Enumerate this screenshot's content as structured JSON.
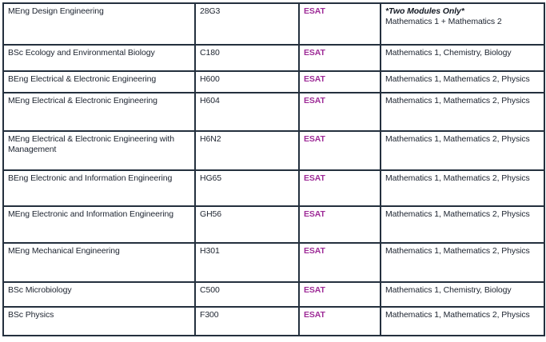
{
  "colors": {
    "esat_text": "#9e2b97",
    "table_border": "#24303e",
    "body_text": "#1d2430"
  },
  "table": {
    "rows": [
      {
        "course": "MEng Design Engineering",
        "code": "28G3",
        "test": "ESAT",
        "note": "*Two Modules Only*",
        "modules": "Mathematics 1 + Mathematics 2"
      },
      {
        "course": "BSc Ecology and Environmental Biology",
        "code": "C180",
        "test": "ESAT",
        "modules": "Mathematics 1, Chemistry, Biology"
      },
      {
        "course": "BEng Electrical & Electronic Engineering",
        "code": "H600",
        "test": "ESAT",
        "modules": "Mathematics 1, Mathematics 2, Physics"
      },
      {
        "course": "MEng Electrical & Electronic Engineering",
        "code": "H604",
        "test": "ESAT",
        "modules": "Mathematics 1, Mathematics 2, Physics"
      },
      {
        "course": "MEng Electrical & Electronic Engineering with Management",
        "code": "H6N2",
        "test": "ESAT",
        "modules": "Mathematics 1, Mathematics 2, Physics"
      },
      {
        "course": "BEng Electronic and Information Engineering",
        "code": "HG65",
        "test": "ESAT",
        "modules": "Mathematics 1, Mathematics 2, Physics"
      },
      {
        "course": "MEng Electronic and Information Engineering",
        "code": "GH56",
        "test": "ESAT",
        "modules": "Mathematics 1, Mathematics 2, Physics"
      },
      {
        "course": "MEng Mechanical Engineering",
        "code": "H301",
        "test": "ESAT",
        "modules": "Mathematics 1, Mathematics 2, Physics"
      },
      {
        "course": "BSc Microbiology",
        "code": "C500",
        "test": "ESAT",
        "modules": "Mathematics 1, Chemistry, Biology"
      },
      {
        "course": "BSc Physics",
        "code": "F300",
        "test": "ESAT",
        "modules": "Mathematics 1, Mathematics 2, Physics"
      }
    ]
  }
}
